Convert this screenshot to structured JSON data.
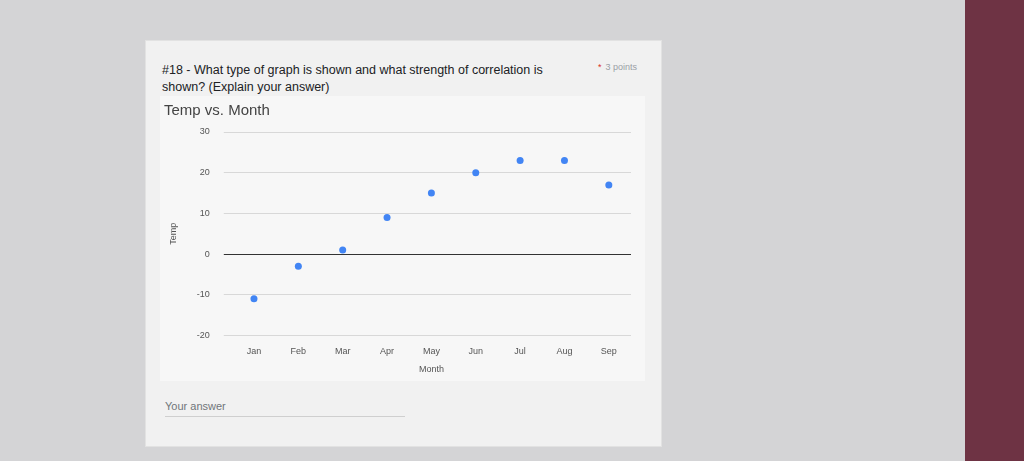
{
  "form": {
    "question": "#18 - What type of graph is shown and what strength of correlation is shown? (Explain your answer)",
    "required_mark": "*",
    "points": "3 points",
    "answer_label": "Your answer"
  },
  "chart_data": {
    "type": "scatter",
    "title": "Temp vs. Month",
    "x_label": "Month",
    "y_label": "Temp",
    "categories": [
      "Jan",
      "Feb",
      "Mar",
      "Apr",
      "May",
      "Jun",
      "Jul",
      "Aug",
      "Sep"
    ],
    "values": [
      -11,
      -3,
      1,
      9,
      15,
      20,
      23,
      23,
      17
    ],
    "color": "#4285f4",
    "marker": "circle",
    "ylim": [
      -20,
      30
    ],
    "yticks": [
      -20,
      -10,
      0,
      10,
      20,
      30
    ],
    "grid": true
  }
}
